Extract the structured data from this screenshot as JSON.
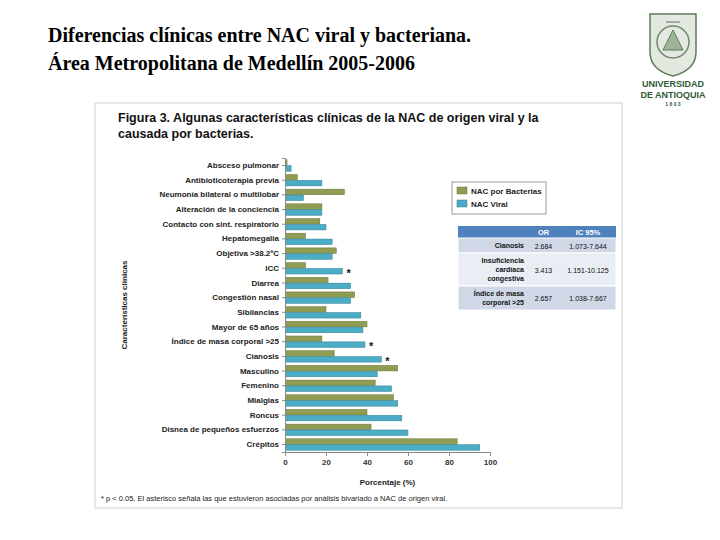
{
  "slide": {
    "title": [
      "Diferencias clínicas entre NAC viral y bacteriana.",
      "Área Metropolitana de Medellín 2005-2006"
    ],
    "logo": [
      "UNIVERSIDAD",
      "DE ANTIOQUIA",
      "1 8 0 3"
    ]
  },
  "chart_data": {
    "type": "bar",
    "orientation": "horizontal",
    "title": "Figura 3. Algunas características clínicas de la NAC de origen viral y la causada por bacterias.",
    "x_label": "Porcentaje (%)",
    "y_label": "Características clínicas",
    "categories": [
      "Absceso pulmonar",
      "Antibioticoterapia previa",
      "Neumonía bilateral o multilobar",
      "Alteración de la conciencia",
      "Contacto con sint. respiratorio",
      "Hepatomegalia",
      "Objetiva >38.2ºC",
      "ICC",
      "Diarrea",
      "Congestión nasal",
      "Sibilancias",
      "Mayor de 65 años",
      "Índice de masa corporal >25",
      "Cianosis",
      "Masculino",
      "Femenino",
      "Mialgias",
      "Roncus",
      "Disnea de pequeños esfuerzos",
      "Crépitos"
    ],
    "series": [
      {
        "name": "NAC por Bacterias",
        "color": "#8f9c52",
        "values": [
          1,
          6,
          29,
          18,
          17,
          10,
          25,
          10,
          21,
          34,
          20,
          40,
          18,
          24,
          55,
          44,
          53,
          40,
          42,
          84
        ]
      },
      {
        "name": "NAC Viral",
        "color": "#4bacc6",
        "values": [
          3,
          18,
          9,
          18,
          20,
          23,
          23,
          28,
          32,
          32,
          37,
          38,
          39,
          47,
          45,
          52,
          55,
          57,
          60,
          95
        ]
      }
    ],
    "significance": [
      null,
      null,
      null,
      null,
      null,
      null,
      null,
      "*",
      null,
      null,
      null,
      null,
      "*",
      "*",
      null,
      null,
      null,
      null,
      null,
      null
    ],
    "xlim": [
      0,
      100
    ],
    "xticks": [
      0,
      20,
      40,
      60,
      80,
      100
    ],
    "grid": false,
    "legend": "upper right",
    "footnote": "* p < 0.05. El asterisco señala las que estuvieron asociadas por análisis bivariado a NAC de origen viral."
  },
  "table": {
    "columns": [
      "OR",
      "IC 95%"
    ],
    "rows": [
      {
        "label": [
          "Cianosis"
        ],
        "or": 2.684,
        "ci": "1.073-7.644"
      },
      {
        "label": [
          "Insuficiencia",
          "cardíaca",
          "congestiva"
        ],
        "or": 3.413,
        "ci": "1.151-10.125"
      },
      {
        "label": [
          "Índice de masa",
          "corporal >25"
        ],
        "or": 2.657,
        "ci": "1.038-7.667"
      }
    ]
  }
}
